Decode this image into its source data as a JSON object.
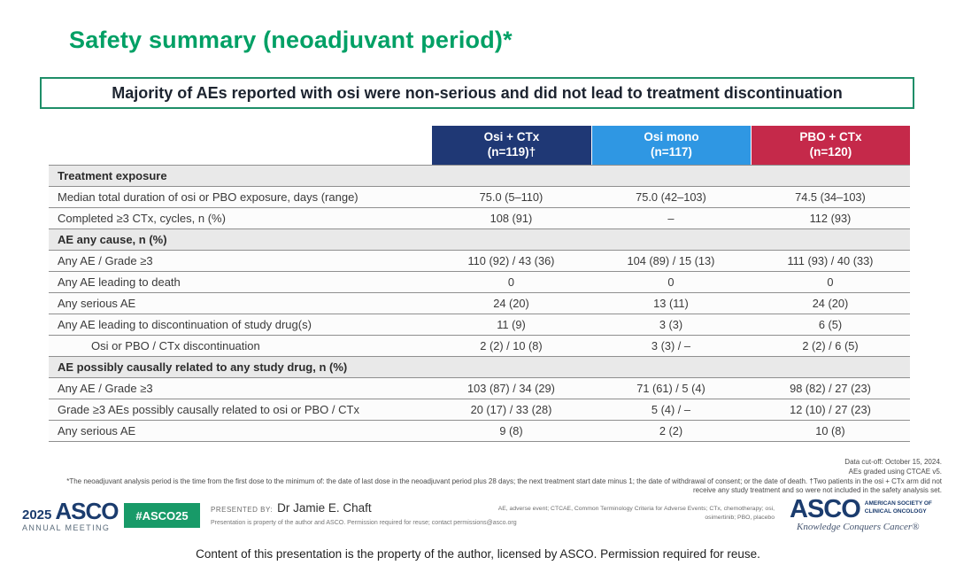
{
  "slide": {
    "title": "Safety summary (neoadjuvant period)*",
    "headline": "Majority of AEs reported with osi were non-serious and did not lead to treatment discontinuation"
  },
  "colors": {
    "title_green": "#00A065",
    "headline_border_green": "#1E8E68",
    "osi_ctx_navy": "#1F3875",
    "osi_mono_blue": "#2F97E3",
    "pbo_ctx_red": "#C5294A",
    "section_row_gray": "#E9E9E9",
    "badge_green": "#189A68",
    "asco_navy": "#1B3C6E"
  },
  "table": {
    "columns": [
      {
        "line1": "Osi + CTx",
        "line2": "(n=119)†",
        "color": "#1F3875"
      },
      {
        "line1": "Osi mono",
        "line2": "(n=117)",
        "color": "#2F97E3"
      },
      {
        "line1": "PBO + CTx",
        "line2": "(n=120)",
        "color": "#C5294A"
      }
    ],
    "rows": [
      {
        "type": "section",
        "label": "Treatment exposure"
      },
      {
        "type": "data",
        "label": "Median total duration of osi or PBO exposure, days (range)",
        "values": [
          "75.0 (5–110)",
          "75.0 (42–103)",
          "74.5 (34–103)"
        ]
      },
      {
        "type": "data",
        "label": "Completed ≥3 CTx, cycles, n (%)",
        "values": [
          "108 (91)",
          "–",
          "112 (93)"
        ]
      },
      {
        "type": "section",
        "label": "AE any cause, n (%)"
      },
      {
        "type": "data",
        "label": "Any AE / Grade ≥3",
        "values": [
          "110 (92) / 43 (36)",
          "104 (89) / 15 (13)",
          "111 (93) / 40 (33)"
        ]
      },
      {
        "type": "data",
        "label": "Any AE leading to death",
        "values": [
          "0",
          "0",
          "0"
        ]
      },
      {
        "type": "data",
        "label": "Any serious AE",
        "values": [
          "24 (20)",
          "13 (11)",
          "24 (20)"
        ]
      },
      {
        "type": "data",
        "label": "Any AE leading to discontinuation of study drug(s)",
        "values": [
          "11 (9)",
          "3 (3)",
          "6 (5)"
        ]
      },
      {
        "type": "data",
        "indent": true,
        "label": "Osi or PBO / CTx discontinuation",
        "values": [
          "2 (2) / 10 (8)",
          "3 (3) / –",
          "2 (2) / 6 (5)"
        ]
      },
      {
        "type": "section",
        "label": "AE possibly causally related to any study drug, n (%)"
      },
      {
        "type": "data",
        "label": "Any AE / Grade ≥3",
        "values": [
          "103 (87) / 34 (29)",
          "71 (61) / 5 (4)",
          "98 (82) / 27 (23)"
        ]
      },
      {
        "type": "data",
        "label": "Grade ≥3 AEs possibly causally related to osi or PBO / CTx",
        "values": [
          "20 (17) / 33 (28)",
          "5 (4) / –",
          "12 (10) / 27 (23)"
        ]
      },
      {
        "type": "data",
        "label": "Any serious AE",
        "values": [
          "9 (8)",
          "2 (2)",
          "10 (8)"
        ]
      }
    ]
  },
  "footnotes": {
    "data_cutoff": "Data cut-off: October 15, 2024.",
    "grading": "AEs graded using CTCAE v5.",
    "analysis_note": "*The neoadjuvant analysis period is the time from the first dose to the minimum of: the date of last dose in the neoadjuvant period plus 28 days; the next treatment start date minus 1; the date of withdrawal of consent; or the date of death. †Two patients in the osi + CTx arm did not receive any study treatment and so were not included in the safety analysis set."
  },
  "footer": {
    "meeting_year": "2025",
    "meeting_logo": "ASCO",
    "meeting_name": "ANNUAL MEETING",
    "hashtag": "#ASCO25",
    "presented_by_label": "PRESENTED BY:",
    "presenter": "Dr Jamie E. Chaft",
    "permission_note": "Presentation is property of the author and ASCO. Permission required for reuse; contact permissions@asco.org",
    "abbreviations_line1": "AE, adverse event; CTCAE, Common Terminology Criteria for Adverse Events; CTx, chemotherapy; osi,",
    "abbreviations_line2": "osimertinib; PBO, placebo",
    "asco_logo": "ASCO",
    "asco_society_line1": "AMERICAN SOCIETY OF",
    "asco_society_line2": "CLINICAL ONCOLOGY",
    "asco_tagline": "Knowledge Conquers Cancer®"
  },
  "caption": "Content of this presentation is the property of the author, licensed by ASCO. Permission required for reuse."
}
